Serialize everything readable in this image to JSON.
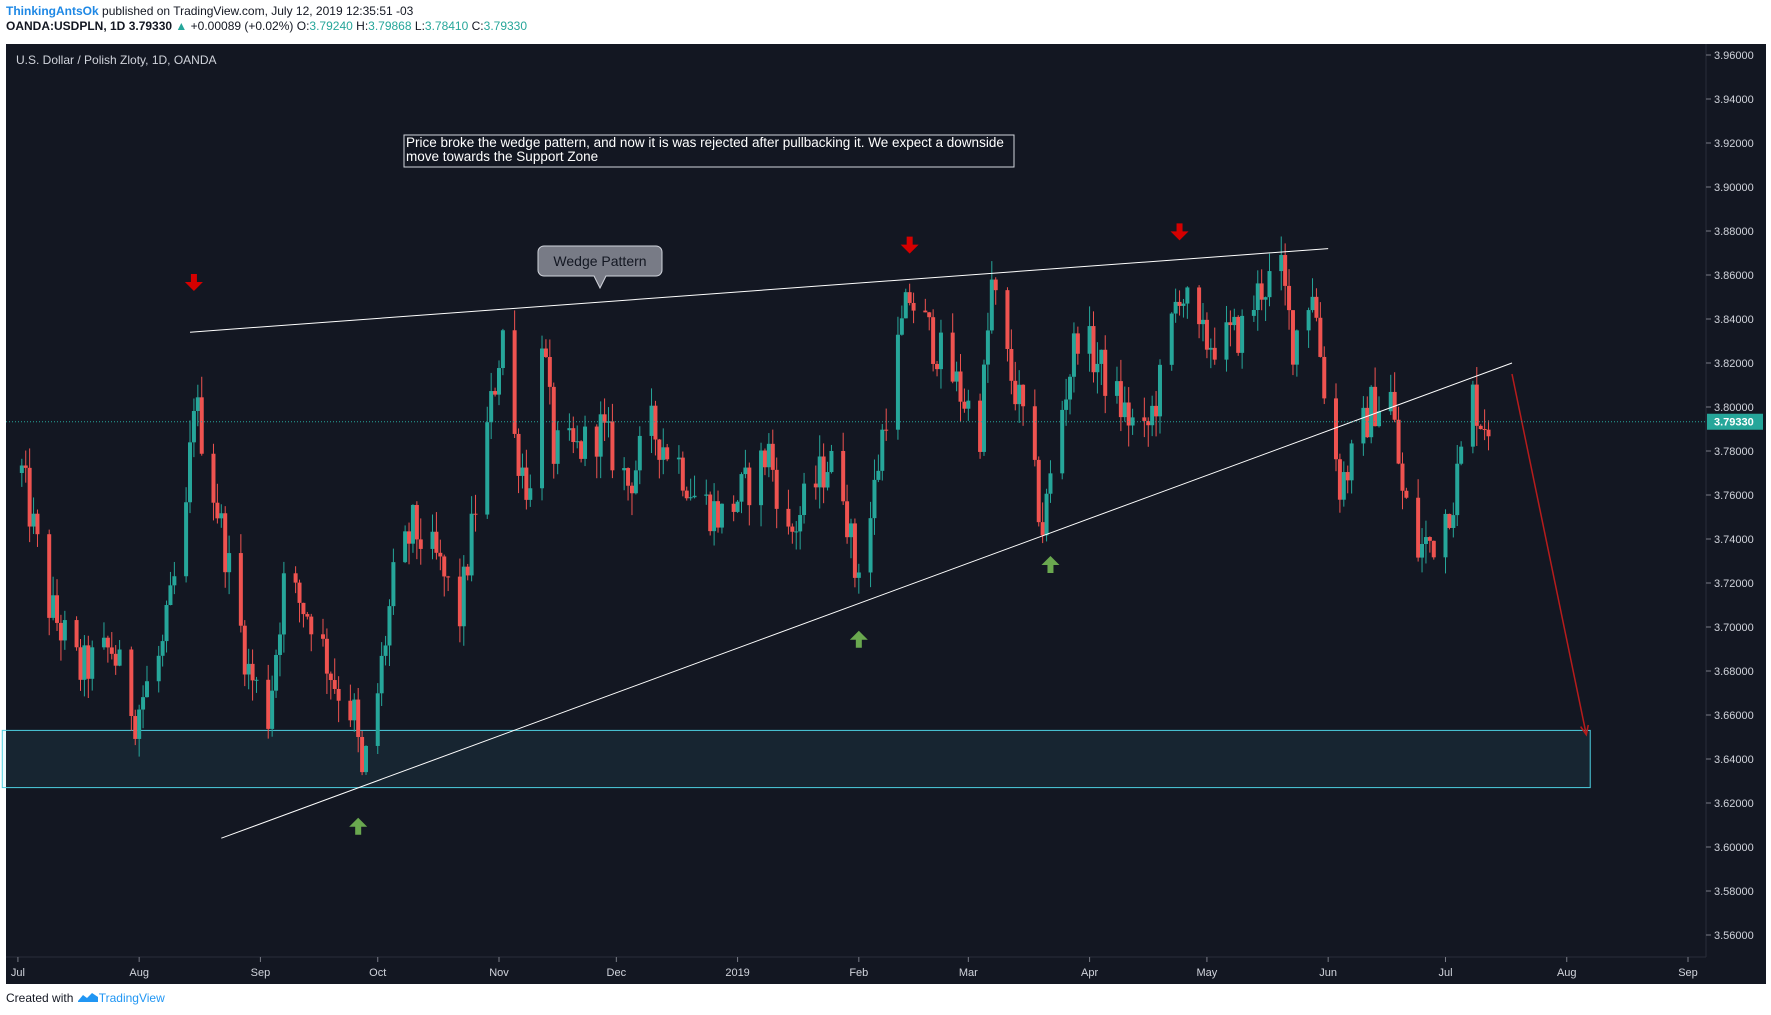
{
  "header": {
    "author": "ThinkingAntsOk",
    "published": "published on TradingView.com, July 12, 2019 12:35:51 -03",
    "symbol": "OANDA:USDPLN, 1D",
    "last": "3.79330",
    "change": "+0.00089 (+0.02%)",
    "open_label": "O:",
    "open": "3.79240",
    "high_label": "H:",
    "high": "3.79868",
    "low_label": "L:",
    "low": "3.78410",
    "close_label": "C:",
    "close": "3.79330"
  },
  "footer": {
    "created_with": "Created with",
    "brand": "TradingView"
  },
  "colors": {
    "background": "#131722",
    "bull": "#26a69a",
    "bear": "#ef5350",
    "arrow_down": "#d50000",
    "arrow_up": "#6aa84f",
    "zone": "#4dd0e1",
    "trendline": "#ffffff",
    "projection": "#b71c1c"
  },
  "chart_data": {
    "type": "candlestick",
    "title": "U.S. Dollar / Polish Zloty, 1D, OANDA",
    "ylim": [
      3.55,
      3.965
    ],
    "yticks": [
      "3.56000",
      "3.58000",
      "3.60000",
      "3.62000",
      "3.64000",
      "3.66000",
      "3.68000",
      "3.70000",
      "3.72000",
      "3.74000",
      "3.76000",
      "3.78000",
      "3.80000",
      "3.82000",
      "3.84000",
      "3.86000",
      "3.88000",
      "3.90000",
      "3.92000",
      "3.94000",
      "3.96000"
    ],
    "xticks": [
      "Jul",
      "Aug",
      "Sep",
      "Oct",
      "Nov",
      "Dec",
      "2019",
      "Feb",
      "Mar",
      "Apr",
      "May",
      "Jun",
      "Jul",
      "Aug",
      "Sep"
    ],
    "last_price": "3.79330",
    "last_price_value": 3.7933,
    "anchors": [
      {
        "date": "2018-07-02",
        "close": 3.77
      },
      {
        "date": "2018-07-09",
        "close": 3.71
      },
      {
        "date": "2018-07-17",
        "close": 3.68
      },
      {
        "date": "2018-07-25",
        "close": 3.69
      },
      {
        "date": "2018-07-31",
        "close": 3.66
      },
      {
        "date": "2018-08-07",
        "close": 3.69
      },
      {
        "date": "2018-08-13",
        "close": 3.75
      },
      {
        "date": "2018-08-15",
        "close": 3.805
      },
      {
        "date": "2018-08-22",
        "close": 3.745
      },
      {
        "date": "2018-08-29",
        "close": 3.68
      },
      {
        "date": "2018-09-03",
        "close": 3.66
      },
      {
        "date": "2018-09-07",
        "close": 3.72
      },
      {
        "date": "2018-09-14",
        "close": 3.705
      },
      {
        "date": "2018-09-20",
        "close": 3.675
      },
      {
        "date": "2018-09-25",
        "close": 3.66
      },
      {
        "date": "2018-09-27",
        "close": 3.63
      },
      {
        "date": "2018-10-01",
        "close": 3.67
      },
      {
        "date": "2018-10-05",
        "close": 3.72
      },
      {
        "date": "2018-10-10",
        "close": 3.745
      },
      {
        "date": "2018-10-16",
        "close": 3.73
      },
      {
        "date": "2018-10-22",
        "close": 3.705
      },
      {
        "date": "2018-10-26",
        "close": 3.755
      },
      {
        "date": "2018-10-30",
        "close": 3.8
      },
      {
        "date": "2018-11-02",
        "close": 3.835
      },
      {
        "date": "2018-11-05",
        "close": 3.785
      },
      {
        "date": "2018-11-09",
        "close": 3.76
      },
      {
        "date": "2018-11-12",
        "close": 3.835
      },
      {
        "date": "2018-11-15",
        "close": 3.78
      },
      {
        "date": "2018-11-21",
        "close": 3.78
      },
      {
        "date": "2018-11-27",
        "close": 3.79
      },
      {
        "date": "2018-12-04",
        "close": 3.765
      },
      {
        "date": "2018-12-10",
        "close": 3.79
      },
      {
        "date": "2018-12-17",
        "close": 3.775
      },
      {
        "date": "2018-12-21",
        "close": 3.76
      },
      {
        "date": "2018-12-28",
        "close": 3.75
      },
      {
        "date": "2019-01-04",
        "close": 3.765
      },
      {
        "date": "2019-01-09",
        "close": 3.78
      },
      {
        "date": "2019-01-14",
        "close": 3.74
      },
      {
        "date": "2019-01-18",
        "close": 3.755
      },
      {
        "date": "2019-01-24",
        "close": 3.775
      },
      {
        "date": "2019-01-28",
        "close": 3.765
      },
      {
        "date": "2019-01-31",
        "close": 3.725
      },
      {
        "date": "2019-02-04",
        "close": 3.75
      },
      {
        "date": "2019-02-08",
        "close": 3.8
      },
      {
        "date": "2019-02-12",
        "close": 3.835
      },
      {
        "date": "2019-02-14",
        "close": 3.85
      },
      {
        "date": "2019-02-20",
        "close": 3.83
      },
      {
        "date": "2019-02-26",
        "close": 3.81
      },
      {
        "date": "2019-03-04",
        "close": 3.79
      },
      {
        "date": "2019-03-07",
        "close": 3.855
      },
      {
        "date": "2019-03-11",
        "close": 3.82
      },
      {
        "date": "2019-03-15",
        "close": 3.795
      },
      {
        "date": "2019-03-20",
        "close": 3.745
      },
      {
        "date": "2019-03-25",
        "close": 3.8
      },
      {
        "date": "2019-03-29",
        "close": 3.835
      },
      {
        "date": "2019-04-03",
        "close": 3.82
      },
      {
        "date": "2019-04-09",
        "close": 3.8
      },
      {
        "date": "2019-04-15",
        "close": 3.785
      },
      {
        "date": "2019-04-19",
        "close": 3.81
      },
      {
        "date": "2019-04-24",
        "close": 3.855
      },
      {
        "date": "2019-04-29",
        "close": 3.83
      },
      {
        "date": "2019-05-06",
        "close": 3.83
      },
      {
        "date": "2019-05-10",
        "close": 3.835
      },
      {
        "date": "2019-05-15",
        "close": 3.855
      },
      {
        "date": "2019-05-20",
        "close": 3.86
      },
      {
        "date": "2019-05-23",
        "close": 3.83
      },
      {
        "date": "2019-05-28",
        "close": 3.855
      },
      {
        "date": "2019-05-31",
        "close": 3.81
      },
      {
        "date": "2019-06-04",
        "close": 3.765
      },
      {
        "date": "2019-06-07",
        "close": 3.775
      },
      {
        "date": "2019-06-12",
        "close": 3.8
      },
      {
        "date": "2019-06-17",
        "close": 3.805
      },
      {
        "date": "2019-06-20",
        "close": 3.76
      },
      {
        "date": "2019-06-24",
        "close": 3.735
      },
      {
        "date": "2019-06-28",
        "close": 3.74
      },
      {
        "date": "2019-07-03",
        "close": 3.76
      },
      {
        "date": "2019-07-08",
        "close": 3.805
      },
      {
        "date": "2019-07-10",
        "close": 3.795
      },
      {
        "date": "2019-07-12",
        "close": 3.7933
      }
    ],
    "annotations": {
      "note": "Price broke the wedge pattern, and now it is was rejected after pullbacking it. We expect a downside move towards the Support Zone",
      "callout": "Wedge Pattern",
      "support_zone": {
        "from": "2018-06-27",
        "to": "2019-08-07",
        "low": 3.627,
        "high": 3.653
      },
      "upper_trendline": {
        "from": {
          "date": "2018-08-14",
          "price": 3.834
        },
        "to": {
          "date": "2019-06-01",
          "price": 3.872
        }
      },
      "lower_trendline": {
        "from": {
          "date": "2018-08-22",
          "price": 3.604
        },
        "to": {
          "date": "2019-07-18",
          "price": 3.82
        }
      },
      "projection_arrow": {
        "from": {
          "date": "2019-07-18",
          "price": 3.815
        },
        "to": {
          "date": "2019-08-06",
          "price": 3.651
        }
      },
      "down_arrows": [
        {
          "date": "2018-08-15",
          "price": 3.855
        },
        {
          "date": "2019-02-14",
          "price": 3.872
        },
        {
          "date": "2019-04-24",
          "price": 3.878
        }
      ],
      "up_arrows": [
        {
          "date": "2018-09-26",
          "price": 3.611
        },
        {
          "date": "2019-02-01",
          "price": 3.696
        },
        {
          "date": "2019-03-22",
          "price": 3.73
        }
      ]
    }
  }
}
